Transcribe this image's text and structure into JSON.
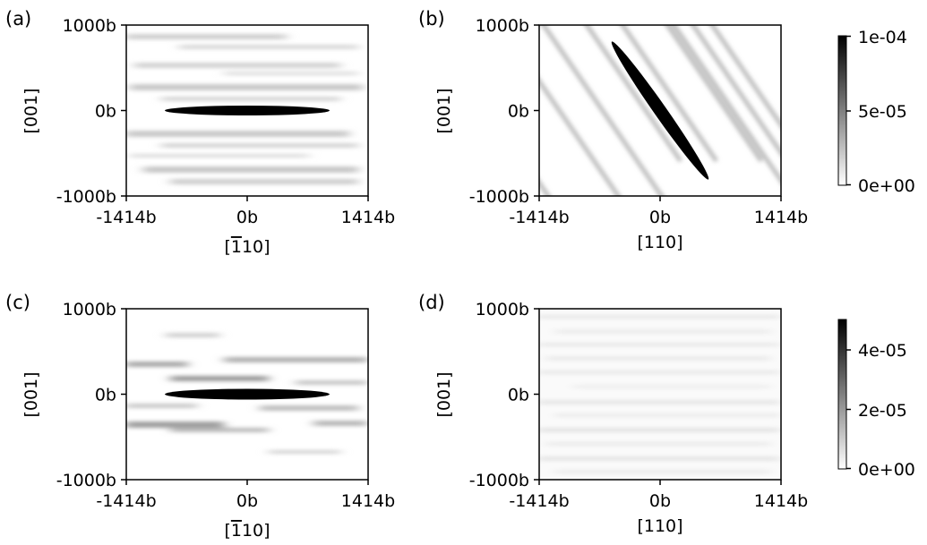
{
  "chart_data": [
    {
      "type": "heatmap",
      "panel_label": "(a)",
      "xlabel_plain": "[",
      "xlabel_overbar": "1",
      "xlabel_rest": "10]",
      "xlabel_prefix": "",
      "ylabel": "[001]",
      "x_ticks": [
        "-1414b",
        "0b",
        "1414b"
      ],
      "y_ticks": [
        "1000b",
        "0b",
        "-1000b"
      ],
      "xlim": [
        -1414,
        1414
      ],
      "ylim": [
        -1000,
        1000
      ],
      "feature": {
        "shape": "ellipse",
        "center": [
          0,
          0
        ],
        "major_length": 1900,
        "minor_length": 100,
        "orientation": "horizontal",
        "value": 0.0001
      },
      "background": "horizontal streaks",
      "colorbar": "top"
    },
    {
      "type": "heatmap",
      "panel_label": "(b)",
      "xlabel_plain": "[110]",
      "ylabel": "[001]",
      "x_ticks": [
        "-1414b",
        "0b",
        "1414b"
      ],
      "y_ticks": [
        "1000b",
        "0b",
        "-1000b"
      ],
      "xlim": [
        -1414,
        1414
      ],
      "ylim": [
        -1000,
        1000
      ],
      "feature": {
        "shape": "ellipse",
        "center": [
          0,
          0
        ],
        "major_length": 1800,
        "minor_length": 110,
        "orientation": "diagonal",
        "value": 0.0001
      },
      "background": "diagonal stripes",
      "colorbar": "top"
    },
    {
      "type": "heatmap",
      "panel_label": "(c)",
      "xlabel_plain": "[",
      "xlabel_overbar": "1",
      "xlabel_rest": "10]",
      "ylabel": "[001]",
      "x_ticks": [
        "-1414b",
        "0b",
        "1414b"
      ],
      "y_ticks": [
        "1000b",
        "0b",
        "-1000b"
      ],
      "xlim": [
        -1414,
        1414
      ],
      "ylim": [
        -1000,
        1000
      ],
      "feature": {
        "shape": "ellipse",
        "center": [
          0,
          0
        ],
        "major_length": 1900,
        "minor_length": 100,
        "orientation": "horizontal",
        "value": 5e-05
      },
      "background": "horizontal streaks",
      "colorbar": "bottom"
    },
    {
      "type": "heatmap",
      "panel_label": "(d)",
      "xlabel_plain": "[110]",
      "ylabel": "[001]",
      "x_ticks": [
        "-1414b",
        "0b",
        "1414b"
      ],
      "y_ticks": [
        "1000b",
        "0b",
        "-1000b"
      ],
      "xlim": [
        -1414,
        1414
      ],
      "ylim": [
        -1000,
        1000
      ],
      "feature": null,
      "background": "faint horizontal streaks",
      "colorbar": "bottom"
    }
  ],
  "colorbars": {
    "top": {
      "ticks": [
        "1e-04",
        "5e-05",
        "0e+00"
      ],
      "tick_values": [
        0.0001,
        5e-05,
        0
      ],
      "range": [
        0,
        0.0001
      ],
      "colormap": "white to black"
    },
    "bottom": {
      "ticks": [
        "4e-05",
        "2e-05",
        "0e+00"
      ],
      "tick_values": [
        4e-05,
        2e-05,
        0
      ],
      "range": [
        0,
        5e-05
      ],
      "colormap": "white to black"
    }
  }
}
